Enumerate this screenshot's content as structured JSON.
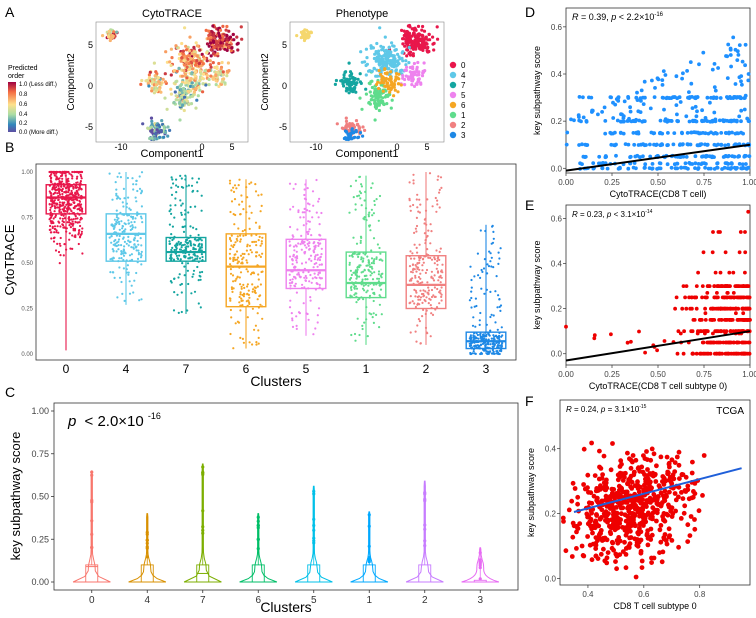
{
  "panel_letters": [
    "A",
    "B",
    "C",
    "D",
    "E",
    "F"
  ],
  "colors": {
    "cluster": {
      "0": "#e8174b",
      "4": "#5ec8e8",
      "7": "#14a5a0",
      "6": "#f5a623",
      "5": "#ee82ee",
      "1": "#5fdc8c",
      "2": "#f08080",
      "3": "#1e88e5"
    },
    "violin": {
      "0": "#f8766d",
      "4": "#d89000",
      "7": "#7cae00",
      "6": "#00be67",
      "5": "#00c0e8",
      "1": "#00a9ff",
      "2": "#c77cff",
      "3": "#e76bf3"
    },
    "scatterD": "#1e90ff",
    "scatterE": "#ee0000",
    "scatterF": "#ee0000",
    "lineF": "#1f5fd9",
    "lineDE": "#000000"
  },
  "panelA": {
    "left_title": "CytoTRACE",
    "right_title": "Phenotype",
    "xlabel": "Component1",
    "ylabel": "Component2",
    "xticks": [
      "-10",
      "0",
      "5"
    ],
    "yticks": [
      "5",
      "0",
      "-5"
    ],
    "colorbar": {
      "title_line1": "Predicted",
      "title_line2": "order",
      "labels": [
        "1.0 (Less diff.)",
        "0.8",
        "0.6",
        "0.4",
        "0.2",
        "0.0 (More diff.)"
      ]
    },
    "legend": [
      "0",
      "4",
      "7",
      "5",
      "6",
      "1",
      "2",
      "3"
    ]
  },
  "chart_data": [
    {
      "id": "B",
      "type": "box",
      "ylabel": "CytoTRACE",
      "xlabel": "Clusters",
      "categories": [
        "0",
        "4",
        "7",
        "6",
        "5",
        "1",
        "2",
        "3"
      ],
      "ylim": [
        0,
        1
      ],
      "yticks": [
        "0.00",
        "0.25",
        "0.50",
        "0.75",
        "1.00"
      ],
      "q1": [
        0.77,
        0.51,
        0.51,
        0.26,
        0.36,
        0.31,
        0.25,
        0.03
      ],
      "median": [
        0.86,
        0.66,
        0.56,
        0.48,
        0.46,
        0.39,
        0.38,
        0.07
      ],
      "q3": [
        0.93,
        0.77,
        0.64,
        0.66,
        0.63,
        0.56,
        0.54,
        0.12
      ],
      "min": [
        0.02,
        0.27,
        0.22,
        0.03,
        0.1,
        0.05,
        0.05,
        0.0
      ],
      "max": [
        1.0,
        1.0,
        0.98,
        0.96,
        0.96,
        0.98,
        1.0,
        0.71
      ]
    },
    {
      "id": "C",
      "type": "violin",
      "annotation": "p < 2.0×10^-16",
      "annotation_prefix": "p",
      "annotation_mid": "< 2.0×10",
      "annotation_exp": "-16",
      "ylabel": "key subpathway score",
      "xlabel": "Clusters",
      "categories": [
        "0",
        "4",
        "7",
        "6",
        "5",
        "1",
        "2",
        "3"
      ],
      "ylim": [
        0,
        1
      ],
      "yticks": [
        "0.00",
        "0.25",
        "0.50",
        "0.75",
        "1.00"
      ],
      "median": [
        0.09,
        0.0,
        0.05,
        0.0,
        0.0,
        0.0,
        0.0,
        0.0
      ],
      "q3": [
        0.1,
        0.1,
        0.1,
        0.1,
        0.1,
        0.1,
        0.1,
        0.01
      ],
      "max": [
        0.65,
        0.4,
        0.69,
        0.4,
        0.56,
        0.41,
        0.59,
        0.2
      ]
    },
    {
      "id": "D",
      "type": "scatter",
      "annotation": "R = 0.39, p < 2.2×10^-16",
      "ann_a": "R",
      "ann_b": " = 0.39, ",
      "ann_c": "p",
      "ann_d": " < 2.2×10",
      "ann_exp": "-16",
      "xlabel": "CytoTRACE(CD8 T cell)",
      "ylabel": "key subpathway score",
      "xlim": [
        0,
        1
      ],
      "ylim": [
        -0.02,
        0.68
      ],
      "xticks": [
        "0.00",
        "0.25",
        "0.50",
        "0.75",
        "1.00"
      ],
      "yticks": [
        "0.0",
        "0.2",
        "0.4",
        "0.6"
      ],
      "trend": {
        "x": [
          0,
          1
        ],
        "y": [
          -0.01,
          0.1
        ]
      }
    },
    {
      "id": "E",
      "type": "scatter",
      "annotation": "R = 0.23, p < 3.1×10^-14",
      "ann_a": "R",
      "ann_b": " = 0.23, ",
      "ann_c": "p",
      "ann_d": " < 3.1×10",
      "ann_exp": "-14",
      "xlabel": "CytoTRACE(CD8 T cell subtype 0)",
      "ylabel": "key subpathway score",
      "xlim": [
        0,
        1
      ],
      "ylim": [
        -0.05,
        0.66
      ],
      "xticks": [
        "0.00",
        "0.25",
        "0.50",
        "0.75",
        "1.00"
      ],
      "yticks": [
        "0.0",
        "0.2",
        "0.4",
        "0.6"
      ],
      "trend": {
        "x": [
          0,
          1
        ],
        "y": [
          -0.03,
          0.1
        ]
      }
    },
    {
      "id": "F",
      "type": "scatter",
      "annotation": "R = 0.24, p = 3.1×10^-15",
      "ann_a": "R",
      "ann_b": " = 0.24, ",
      "ann_c": "p",
      "ann_d": " = 3.1×10",
      "ann_exp": "-15",
      "tag": "TCGA",
      "xlabel": "CD8 T cell subtype 0",
      "ylabel": "key subpathway score",
      "xlim": [
        0.3,
        0.98
      ],
      "ylim": [
        -0.02,
        0.55
      ],
      "xticks": [
        "0.4",
        "0.6",
        "0.8"
      ],
      "yticks": [
        "0.0",
        "0.2",
        "0.4"
      ],
      "trend": {
        "x": [
          0.35,
          0.95
        ],
        "y": [
          0.205,
          0.34
        ]
      }
    }
  ]
}
